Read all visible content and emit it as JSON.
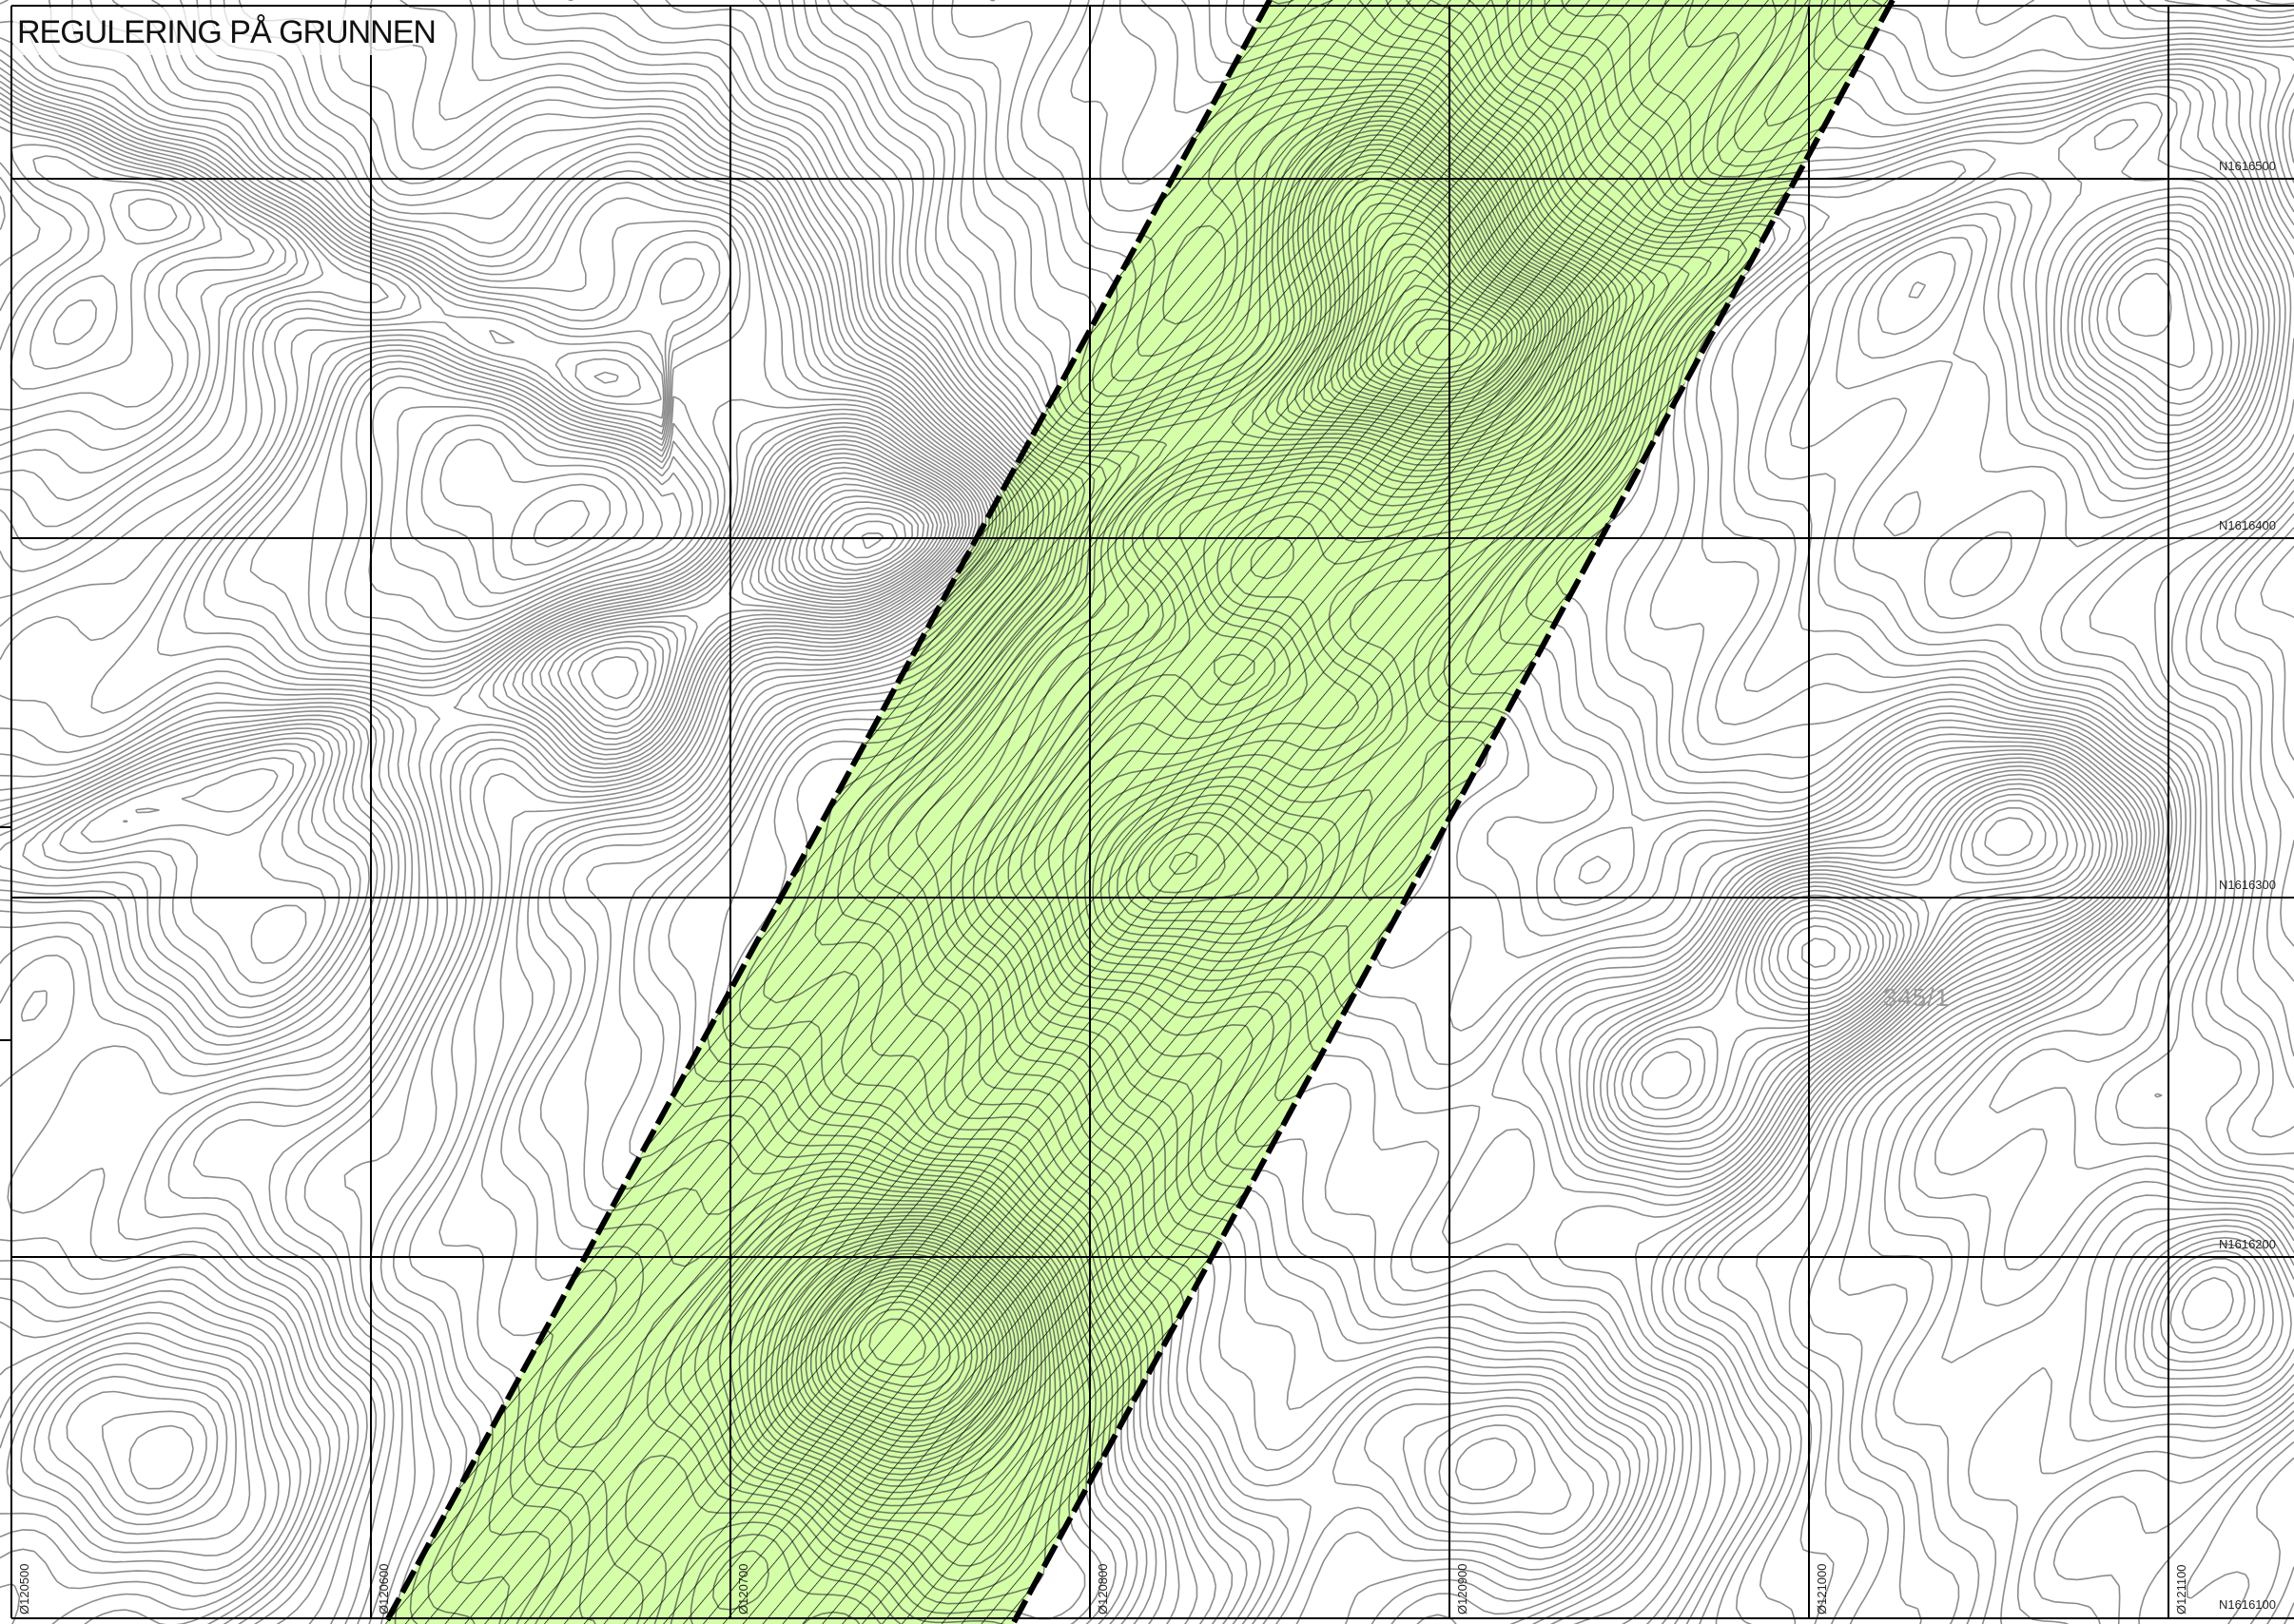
{
  "map": {
    "title": "REGULERING PÅ GRUNNEN",
    "parcel_label": "345/1",
    "northing_labels": [
      "N1616500",
      "N1616400",
      "N1616300",
      "N1616200",
      "N1616100"
    ],
    "easting_labels": [
      "Ø120500",
      "Ø120600",
      "Ø120700",
      "Ø120800",
      "Ø120900",
      "Ø121000",
      "Ø121100"
    ],
    "zone": {
      "fill_color": "#ccff99",
      "hatch_color": "#000000",
      "boundary_color": "#000000",
      "boundary_style": "dashed"
    },
    "contour_color": "#8c8c8c",
    "grid_color": "#000000"
  }
}
